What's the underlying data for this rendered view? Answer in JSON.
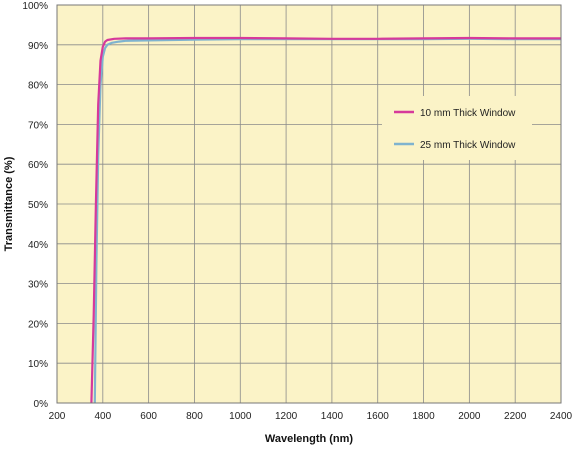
{
  "chart_data": {
    "type": "line",
    "title": "",
    "xlabel": "Wavelength (nm)",
    "ylabel": "Transmittance (%)",
    "xlim": [
      200,
      2400
    ],
    "ylim": [
      0,
      100
    ],
    "x_ticks": [
      "200",
      "400",
      "600",
      "800",
      "1000",
      "1200",
      "1400",
      "1600",
      "1800",
      "2000",
      "2200",
      "2400"
    ],
    "y_ticks": [
      "0%",
      "10%",
      "20%",
      "30%",
      "40%",
      "50%",
      "60%",
      "70%",
      "80%",
      "90%",
      "100%"
    ],
    "grid": true,
    "legend_position": "right",
    "background_color": "#fbf3c7",
    "grid_color": "#8a8a8a",
    "series": [
      {
        "name": "10 mm Thick Window",
        "color": "#d6399b",
        "x": [
          350,
          360,
          370,
          380,
          390,
          400,
          410,
          420,
          450,
          500,
          600,
          800,
          1000,
          1200,
          1400,
          1600,
          1800,
          2000,
          2200,
          2400
        ],
        "y": [
          0,
          22,
          50,
          75,
          86,
          89.5,
          90.8,
          91.2,
          91.5,
          91.6,
          91.6,
          91.7,
          91.7,
          91.6,
          91.5,
          91.5,
          91.6,
          91.7,
          91.6,
          91.6
        ]
      },
      {
        "name": "25 mm Thick Window",
        "color": "#7fb3cf",
        "x": [
          365,
          372,
          380,
          390,
          400,
          410,
          420,
          440,
          470,
          500,
          600,
          800,
          1000,
          1200,
          1400,
          1600,
          1800,
          2000,
          2200,
          2400
        ],
        "y": [
          0,
          35,
          62,
          80,
          87,
          89.2,
          90.0,
          90.5,
          90.8,
          91.0,
          91.1,
          91.3,
          91.4,
          91.4,
          91.4,
          91.4,
          91.4,
          91.5,
          91.4,
          91.4
        ]
      }
    ]
  }
}
